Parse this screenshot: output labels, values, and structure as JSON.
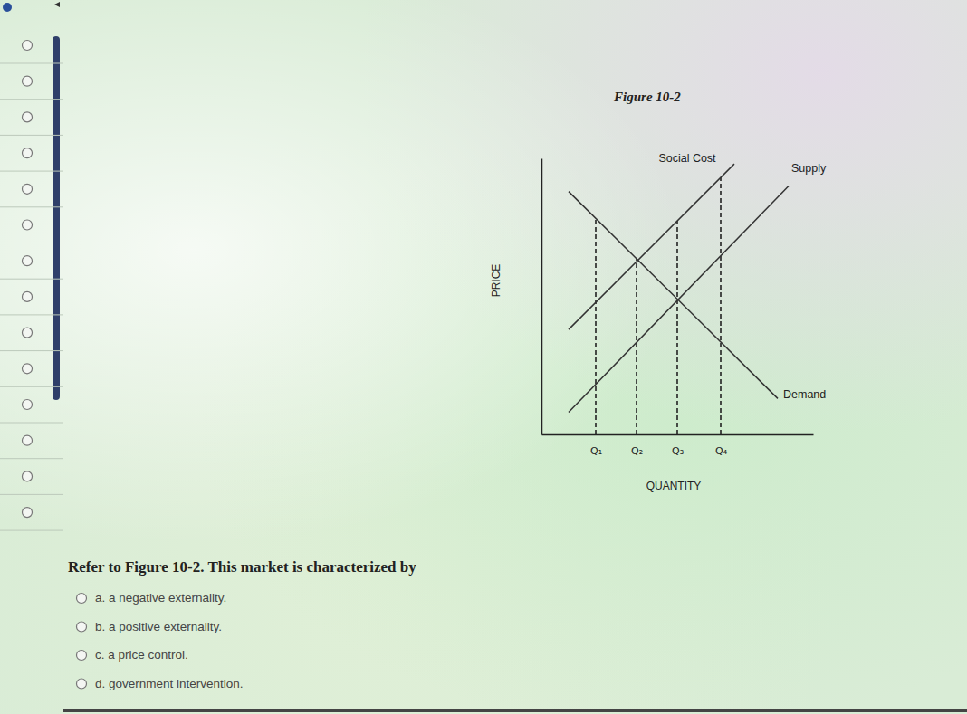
{
  "chart_data": {
    "type": "line",
    "title": "Figure 10-2",
    "x_label": "QUANTITY",
    "y_label": "PRICE",
    "xlim": [
      0,
      10
    ],
    "ylim": [
      0,
      10
    ],
    "xticks": [
      {
        "value": 2,
        "label": "Q₁"
      },
      {
        "value": 3.5,
        "label": "Q₂"
      },
      {
        "value": 5,
        "label": "Q₃"
      },
      {
        "value": 6.6,
        "label": "Q₄"
      }
    ],
    "tick_labels": "x",
    "grid": "x",
    "series": [
      {
        "name": "Demand",
        "color": "#333333",
        "line_style": "solid",
        "x": [
          1,
          8.7
        ],
        "values": [
          8.8,
          1.3
        ]
      },
      {
        "name": "Supply",
        "color": "#333333",
        "line_style": "solid",
        "x": [
          1,
          9.1
        ],
        "values": [
          0.8,
          9.0
        ]
      },
      {
        "name": "Social Cost",
        "color": "#333333",
        "line_style": "solid",
        "x": [
          1,
          7.1
        ],
        "values": [
          3.8,
          9.8
        ]
      }
    ]
  },
  "question": "Refer to Figure 10-2. This market is characterized by",
  "options": [
    "a. a negative externality.",
    "b. a positive externality.",
    "c. a price control.",
    "d. government intervention."
  ]
}
